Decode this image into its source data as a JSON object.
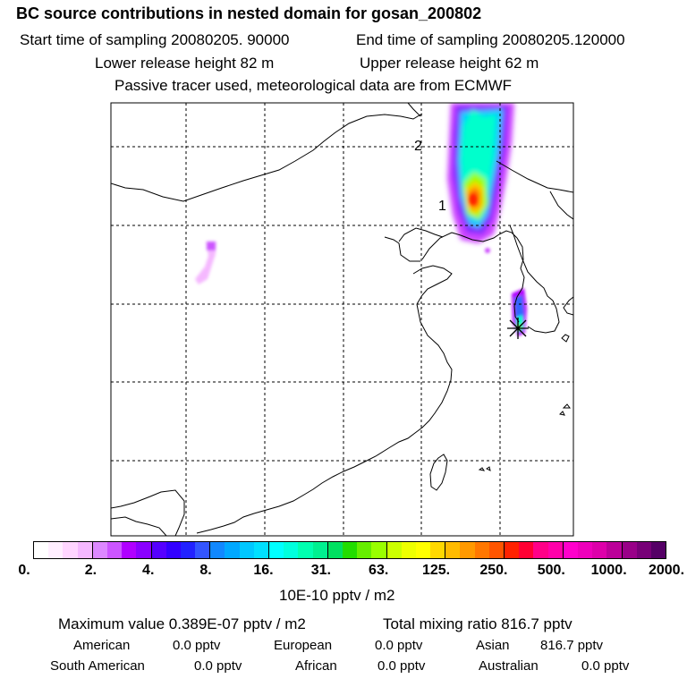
{
  "header": {
    "title": "BC  source contributions in nested domain for gosan_200802",
    "start_label": "Start time of sampling 20080205. 90000",
    "end_label": "End time of sampling 20080205.120000",
    "lower_label": "Lower release height   82 m",
    "upper_label": "Upper release height   62 m",
    "tracer_label": "Passive tracer used, meteorological data are from ECMWF"
  },
  "map": {
    "grid_labels": [
      "2",
      "1"
    ],
    "plume_colors": [
      "#ff00ff",
      "#cc33ff",
      "#9900ff",
      "#3366ff",
      "#00ccff",
      "#00ffcc",
      "#66ff33",
      "#ffff00",
      "#ffaa00",
      "#ff3300"
    ],
    "station_marker": "star-icon"
  },
  "colorbar": {
    "ticks": [
      "0.",
      "2.",
      "4.",
      "8.",
      "16.",
      "31.",
      "63.",
      "125.",
      "250.",
      "500.",
      "1000.",
      "2000."
    ],
    "unit": "10E-10 pptv / m2",
    "colors": [
      "#ffffff",
      "#ffeeff",
      "#ffd5ff",
      "#f5b8ff",
      "#dd88ff",
      "#cc55ff",
      "#b000ff",
      "#8a00ff",
      "#5500ff",
      "#3300ff",
      "#2222ff",
      "#3355ff",
      "#1188ff",
      "#00a8ff",
      "#00c8ff",
      "#00e0ff",
      "#00ffff",
      "#00ffdd",
      "#00ffb0",
      "#00f090",
      "#00e060",
      "#22dd00",
      "#66ee00",
      "#99ff00",
      "#ccff00",
      "#eeff00",
      "#ffff00",
      "#ffd800",
      "#ffbb00",
      "#ff9900",
      "#ff7700",
      "#ff5500",
      "#ff2200",
      "#ff0033",
      "#ff0088",
      "#ff00aa",
      "#ff00cc",
      "#ee00bb",
      "#dd00aa",
      "#bb0099",
      "#990088",
      "#770077",
      "#550066"
    ]
  },
  "summary": {
    "maximum": "Maximum value  0.389E-07 pptv / m2",
    "total": "Total mixing ratio       816.7 pptv",
    "american": "American",
    "american_val": "0.0 pptv",
    "european": "European",
    "european_val": "0.0 pptv",
    "asian": "Asian",
    "asian_val": "816.7 pptv",
    "south_american": "South American",
    "south_american_val": "0.0 pptv",
    "african": "African",
    "african_val": "0.0 pptv",
    "australian": "Australian",
    "australian_val": "0.0 pptv"
  }
}
